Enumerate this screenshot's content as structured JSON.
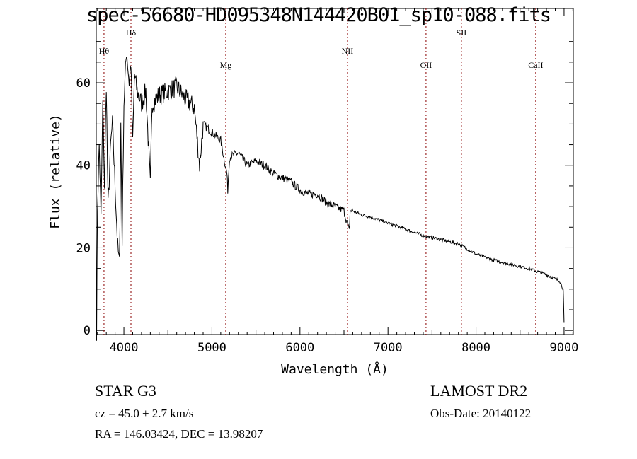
{
  "chart_data": {
    "type": "line",
    "title": "spec-56680-HD095348N144420B01_sp10-088.fits",
    "xlabel": "Wavelength (Å)",
    "ylabel": "Flux (relative)",
    "xlim": [
      3686,
      9105
    ],
    "ylim": [
      -1,
      78
    ],
    "xticks": [
      4000,
      5000,
      6000,
      7000,
      8000,
      9000
    ],
    "yticks": [
      0,
      20,
      40,
      60
    ],
    "grid": false,
    "line_color": "#000000",
    "marker_color": "#8b0000",
    "lines": [
      {
        "label": "Hθ",
        "wavelength": 3774,
        "label_level": 1
      },
      {
        "label": "Hδ",
        "wavelength": 4080,
        "label_level": 0
      },
      {
        "label": "Mg",
        "wavelength": 5157,
        "label_level": 2
      },
      {
        "label": "NII",
        "wavelength": 6540,
        "label_level": 1
      },
      {
        "label": "OII",
        "wavelength": 7432,
        "label_level": 2
      },
      {
        "label": "SII",
        "wavelength": 7834,
        "label_level": 0
      },
      {
        "label": "CaII",
        "wavelength": 8678,
        "label_level": 2
      }
    ],
    "spectrum": {
      "wavelength": [
        3690,
        3700,
        3720,
        3740,
        3760,
        3780,
        3800,
        3820,
        3850,
        3870,
        3900,
        3930,
        3950,
        3965,
        3980,
        4000,
        4030,
        4060,
        4080,
        4100,
        4120,
        4150,
        4200,
        4250,
        4300,
        4320,
        4400,
        4500,
        4600,
        4700,
        4800,
        4860,
        4900,
        5000,
        5100,
        5170,
        5180,
        5200,
        5300,
        5400,
        5500,
        5600,
        5700,
        5800,
        5900,
        6000,
        6100,
        6200,
        6300,
        6400,
        6500,
        6560,
        6570,
        6600,
        6700,
        6800,
        7000,
        7200,
        7400,
        7600,
        7800,
        8000,
        8200,
        8400,
        8600,
        8800,
        8950,
        8990,
        9000
      ],
      "flux": [
        0,
        30,
        45,
        27,
        55,
        35,
        60,
        30,
        45,
        50,
        35,
        20,
        16,
        50,
        22,
        55,
        68,
        60,
        65,
        45,
        62,
        58,
        55,
        58,
        35,
        55,
        57,
        58,
        59,
        56,
        54,
        40,
        50,
        48,
        46,
        38,
        34,
        42,
        43,
        40,
        41,
        40,
        38,
        37,
        36,
        34,
        33,
        33,
        31,
        30,
        29,
        24,
        29,
        29,
        28,
        27.5,
        26,
        24.5,
        23,
        22,
        21,
        18.5,
        17,
        16,
        15,
        13.5,
        12,
        10,
        2
      ]
    }
  },
  "info": {
    "object": "STAR    G3",
    "survey": "LAMOST DR2",
    "cz": "cz = 45.0 ± 2.7 km/s",
    "obs_date": "Obs-Date: 20140122",
    "radec": "RA = 146.03424, DEC =  13.98207"
  }
}
